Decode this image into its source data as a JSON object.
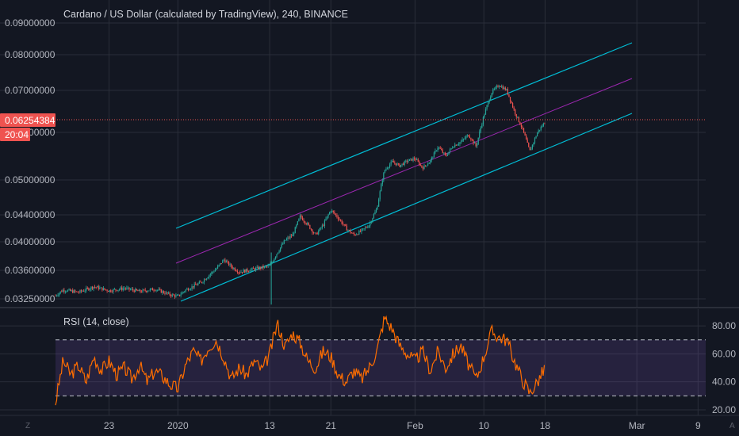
{
  "chart_data": [
    {
      "type": "candlestick",
      "title": "Cardano / US Dollar (calculated by TradingView), 240, BINANCE",
      "ylim": [
        0.0317,
        0.0928
      ],
      "y_ticks": [
        {
          "value": 0.09,
          "label": "0.09000000"
        },
        {
          "value": 0.08,
          "label": "0.08000000"
        },
        {
          "value": 0.07,
          "label": "0.07000000"
        },
        {
          "value": 0.06,
          "label": "0.06000000"
        },
        {
          "value": 0.05,
          "label": "0.05000000"
        },
        {
          "value": 0.044,
          "label": "0.04400000"
        },
        {
          "value": 0.04,
          "label": "0.04000000"
        },
        {
          "value": 0.036,
          "label": "0.03600000"
        },
        {
          "value": 0.0325,
          "label": "0.03250000"
        }
      ],
      "x_ticks": [
        "23",
        "2020",
        "13",
        "21",
        "Feb",
        "10",
        "18",
        "Mar",
        "9"
      ],
      "last_price": {
        "value": 0.06254384,
        "label": "0.06254384",
        "countdown": "20:04"
      },
      "grid": true,
      "colors": {
        "up": "#26a69a",
        "down": "#ef5350",
        "channel": "#00bcd4",
        "midline": "#9c27b0",
        "price_line": "#ef5350"
      },
      "price_path": [
        {
          "x": "Dec 16",
          "y": 0.0329
        },
        {
          "x": "Dec 17",
          "y": 0.0336
        },
        {
          "x": "Dec 19",
          "y": 0.0333
        },
        {
          "x": "Dec 21",
          "y": 0.034
        },
        {
          "x": "Dec 23",
          "y": 0.0335
        },
        {
          "x": "Dec 25",
          "y": 0.0338
        },
        {
          "x": "Dec 27",
          "y": 0.0334
        },
        {
          "x": "Dec 29",
          "y": 0.0337
        },
        {
          "x": "Dec 31",
          "y": 0.033
        },
        {
          "x": "Jan 1",
          "y": 0.0328
        },
        {
          "x": "Jan 2",
          "y": 0.0336
        },
        {
          "x": "Jan 4",
          "y": 0.0345
        },
        {
          "x": "Jan 6",
          "y": 0.0362
        },
        {
          "x": "Jan 7",
          "y": 0.0375
        },
        {
          "x": "Jan 8",
          "y": 0.0365
        },
        {
          "x": "Jan 9",
          "y": 0.0358
        },
        {
          "x": "Jan 11",
          "y": 0.0362
        },
        {
          "x": "Jan 13",
          "y": 0.0366
        },
        {
          "x": "Jan 14",
          "y": 0.0385
        },
        {
          "x": "Jan 15",
          "y": 0.0402
        },
        {
          "x": "Jan 16",
          "y": 0.041
        },
        {
          "x": "Jan 17",
          "y": 0.0438
        },
        {
          "x": "Jan 18",
          "y": 0.0425
        },
        {
          "x": "Jan 19",
          "y": 0.041
        },
        {
          "x": "Jan 20",
          "y": 0.0425
        },
        {
          "x": "Jan 21",
          "y": 0.0448
        },
        {
          "x": "Jan 22",
          "y": 0.0435
        },
        {
          "x": "Jan 23",
          "y": 0.042
        },
        {
          "x": "Jan 24",
          "y": 0.041
        },
        {
          "x": "Jan 25",
          "y": 0.0416
        },
        {
          "x": "Jan 26",
          "y": 0.0425
        },
        {
          "x": "Jan 27",
          "y": 0.045
        },
        {
          "x": "Jan 28",
          "y": 0.052
        },
        {
          "x": "Jan 29",
          "y": 0.0538
        },
        {
          "x": "Jan 30",
          "y": 0.053
        },
        {
          "x": "Jan 31",
          "y": 0.054
        },
        {
          "x": "Feb 1",
          "y": 0.0545
        },
        {
          "x": "Feb 2",
          "y": 0.0525
        },
        {
          "x": "Feb 3",
          "y": 0.054
        },
        {
          "x": "Feb 4",
          "y": 0.057
        },
        {
          "x": "Feb 5",
          "y": 0.055
        },
        {
          "x": "Feb 6",
          "y": 0.0572
        },
        {
          "x": "Feb 7",
          "y": 0.058
        },
        {
          "x": "Feb 8",
          "y": 0.0595
        },
        {
          "x": "Feb 9",
          "y": 0.057
        },
        {
          "x": "Feb 10",
          "y": 0.064
        },
        {
          "x": "Feb 11",
          "y": 0.0695
        },
        {
          "x": "Feb 12",
          "y": 0.0715
        },
        {
          "x": "Feb 13",
          "y": 0.07
        },
        {
          "x": "Feb 14",
          "y": 0.065
        },
        {
          "x": "Feb 15",
          "y": 0.061
        },
        {
          "x": "Feb 16",
          "y": 0.056
        },
        {
          "x": "Feb 17",
          "y": 0.06
        },
        {
          "x": "Feb 18",
          "y": 0.0625
        }
      ]
    },
    {
      "type": "line",
      "title": "RSI (14, close)",
      "ylim": [
        16,
        92
      ],
      "y_ticks": [
        {
          "value": 80,
          "label": "80.00"
        },
        {
          "value": 60,
          "label": "60.00"
        },
        {
          "value": 40,
          "label": "40.00"
        },
        {
          "value": 20,
          "label": "20.00"
        }
      ],
      "overbought": 70,
      "oversold": 30,
      "colors": {
        "line": "#ff6d00",
        "band": "#9c27b0",
        "bounds": "#c0c3cc"
      },
      "series": [
        {
          "x": "Dec 16",
          "y": 25
        },
        {
          "x": "Dec 17",
          "y": 55
        },
        {
          "x": "Dec 18",
          "y": 45
        },
        {
          "x": "Dec 19",
          "y": 52
        },
        {
          "x": "Dec 20",
          "y": 40
        },
        {
          "x": "Dec 21",
          "y": 58
        },
        {
          "x": "Dec 22",
          "y": 48
        },
        {
          "x": "Dec 23",
          "y": 55
        },
        {
          "x": "Dec 24",
          "y": 45
        },
        {
          "x": "Dec 25",
          "y": 50
        },
        {
          "x": "Dec 26",
          "y": 42
        },
        {
          "x": "Dec 27",
          "y": 52
        },
        {
          "x": "Dec 28",
          "y": 40
        },
        {
          "x": "Dec 29",
          "y": 48
        },
        {
          "x": "Dec 30",
          "y": 44
        },
        {
          "x": "Dec 31",
          "y": 38
        },
        {
          "x": "Jan 1",
          "y": 35
        },
        {
          "x": "Jan 2",
          "y": 52
        },
        {
          "x": "Jan 3",
          "y": 62
        },
        {
          "x": "Jan 4",
          "y": 55
        },
        {
          "x": "Jan 5",
          "y": 65
        },
        {
          "x": "Jan 6",
          "y": 70
        },
        {
          "x": "Jan 7",
          "y": 58
        },
        {
          "x": "Jan 8",
          "y": 42
        },
        {
          "x": "Jan 9",
          "y": 50
        },
        {
          "x": "Jan 10",
          "y": 45
        },
        {
          "x": "Jan 11",
          "y": 55
        },
        {
          "x": "Jan 12",
          "y": 48
        },
        {
          "x": "Jan 13",
          "y": 60
        },
        {
          "x": "Jan 14",
          "y": 82
        },
        {
          "x": "Jan 15",
          "y": 65
        },
        {
          "x": "Jan 16",
          "y": 75
        },
        {
          "x": "Jan 17",
          "y": 68
        },
        {
          "x": "Jan 18",
          "y": 55
        },
        {
          "x": "Jan 19",
          "y": 50
        },
        {
          "x": "Jan 20",
          "y": 62
        },
        {
          "x": "Jan 21",
          "y": 58
        },
        {
          "x": "Jan 22",
          "y": 45
        },
        {
          "x": "Jan 23",
          "y": 40
        },
        {
          "x": "Jan 24",
          "y": 48
        },
        {
          "x": "Jan 25",
          "y": 42
        },
        {
          "x": "Jan 26",
          "y": 50
        },
        {
          "x": "Jan 27",
          "y": 62
        },
        {
          "x": "Jan 28",
          "y": 86
        },
        {
          "x": "Jan 29",
          "y": 78
        },
        {
          "x": "Jan 30",
          "y": 66
        },
        {
          "x": "Jan 31",
          "y": 60
        },
        {
          "x": "Feb 1",
          "y": 55
        },
        {
          "x": "Feb 2",
          "y": 62
        },
        {
          "x": "Feb 3",
          "y": 48
        },
        {
          "x": "Feb 4",
          "y": 62
        },
        {
          "x": "Feb 5",
          "y": 50
        },
        {
          "x": "Feb 6",
          "y": 60
        },
        {
          "x": "Feb 7",
          "y": 66
        },
        {
          "x": "Feb 8",
          "y": 52
        },
        {
          "x": "Feb 9",
          "y": 42
        },
        {
          "x": "Feb 10",
          "y": 58
        },
        {
          "x": "Feb 11",
          "y": 76
        },
        {
          "x": "Feb 12",
          "y": 72
        },
        {
          "x": "Feb 13",
          "y": 70
        },
        {
          "x": "Feb 14",
          "y": 55
        },
        {
          "x": "Feb 15",
          "y": 42
        },
        {
          "x": "Feb 16",
          "y": 32
        },
        {
          "x": "Feb 17",
          "y": 40
        },
        {
          "x": "Feb 18",
          "y": 50
        }
      ]
    }
  ],
  "bottom_bar": {
    "left_icon": "Z",
    "right_icon": "A"
  }
}
